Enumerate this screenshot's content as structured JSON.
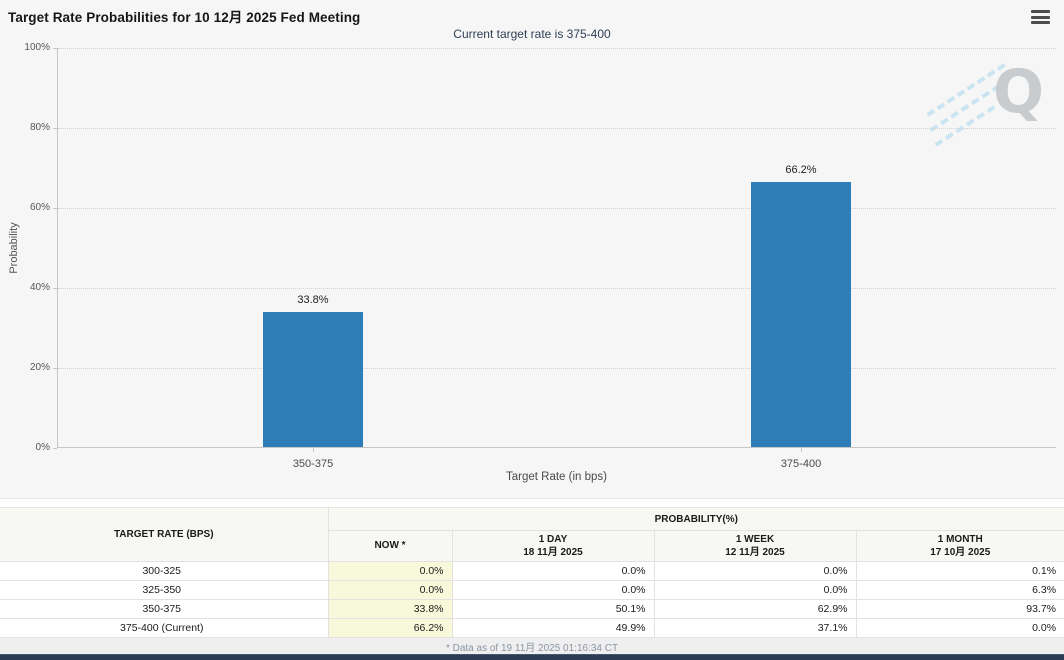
{
  "header": {
    "title": "Target Rate Probabilities for 10 12月 2025 Fed Meeting",
    "subtitle": "Current target rate is 375-400",
    "menu_icon": "hamburger-menu-icon"
  },
  "chart_data": {
    "type": "bar",
    "title": "Target Rate Probabilities for 10 12月 2025 Fed Meeting",
    "subtitle": "Current target rate is 375-400",
    "categories": [
      "350-375",
      "375-400"
    ],
    "values": [
      33.8,
      66.2
    ],
    "bar_labels": [
      "33.8%",
      "66.2%"
    ],
    "xlabel": "Target Rate (in bps)",
    "ylabel": "Probability",
    "ylim": [
      0,
      100
    ],
    "yticks": [
      "0%",
      "20%",
      "40%",
      "60%",
      "80%",
      "100%"
    ],
    "grid": "horizontal-dotted",
    "legend": "none",
    "bar_color": "#2e7cb8",
    "watermark": "Q"
  },
  "table": {
    "col1_header": "TARGET RATE (BPS)",
    "group_header": "PROBABILITY(%)",
    "columns": [
      {
        "label": "NOW *",
        "sub": ""
      },
      {
        "label": "1 DAY",
        "sub": "18 11月 2025"
      },
      {
        "label": "1 WEEK",
        "sub": "12 11月 2025"
      },
      {
        "label": "1 MONTH",
        "sub": "17 10月 2025"
      }
    ],
    "rows": [
      {
        "rate": "300-325",
        "now": "0.0%",
        "day": "0.0%",
        "week": "0.0%",
        "month": "0.1%"
      },
      {
        "rate": "325-350",
        "now": "0.0%",
        "day": "0.0%",
        "week": "0.0%",
        "month": "6.3%"
      },
      {
        "rate": "350-375",
        "now": "33.8%",
        "day": "50.1%",
        "week": "62.9%",
        "month": "93.7%"
      },
      {
        "rate": "375-400 (Current)",
        "now": "66.2%",
        "day": "49.9%",
        "week": "37.1%",
        "month": "0.0%"
      }
    ],
    "footnote": "* Data as of 19 11月 2025 01:16:34 CT"
  },
  "colors": {
    "bar": "#2e7cb8",
    "now_column_bg": "#f8f8da",
    "bottom_bar": "#2b3c52",
    "subtitle_text": "#2f4056",
    "card_bg": "#f6f6f6"
  }
}
